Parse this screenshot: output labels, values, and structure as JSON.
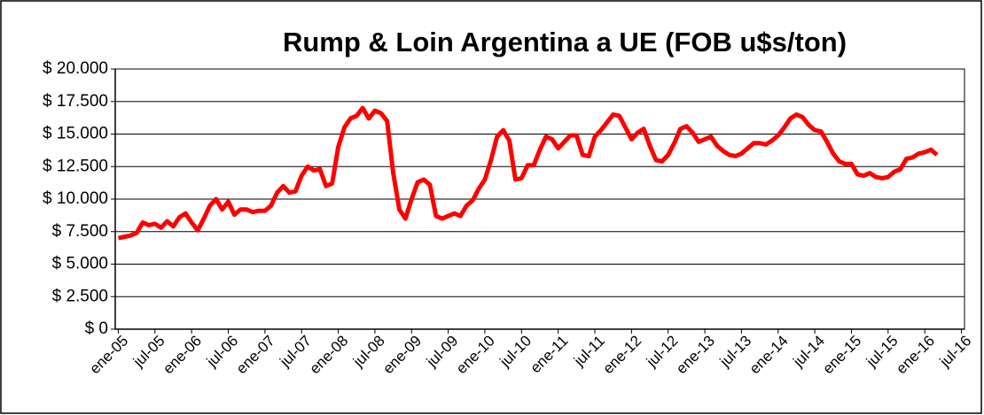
{
  "chart_data": {
    "type": "line",
    "title": "Rump & Loin Argentina a UE (FOB u$s/ton)",
    "categories": [
      "ene-05",
      null,
      null,
      null,
      null,
      null,
      "jul-05",
      null,
      null,
      null,
      null,
      null,
      "ene-06",
      null,
      null,
      null,
      null,
      null,
      "jul-06",
      null,
      null,
      null,
      null,
      null,
      "ene-07",
      null,
      null,
      null,
      null,
      null,
      "jul-07",
      null,
      null,
      null,
      null,
      null,
      "ene-08",
      null,
      null,
      null,
      null,
      null,
      "jul-08",
      null,
      null,
      null,
      null,
      null,
      "ene-09",
      null,
      null,
      null,
      null,
      null,
      "jul-09",
      null,
      null,
      null,
      null,
      null,
      "ene-10",
      null,
      null,
      null,
      null,
      null,
      "jul-10",
      null,
      null,
      null,
      null,
      null,
      "ene-11",
      null,
      null,
      null,
      null,
      null,
      "jul-11",
      null,
      null,
      null,
      null,
      null,
      "ene-12",
      null,
      null,
      null,
      null,
      null,
      "jul-12",
      null,
      null,
      null,
      null,
      null,
      "ene-13",
      null,
      null,
      null,
      null,
      null,
      "jul-13",
      null,
      null,
      null,
      null,
      null,
      "ene-14",
      null,
      null,
      null,
      null,
      null,
      "jul-14",
      null,
      null,
      null,
      null,
      null,
      "ene-15",
      null,
      null,
      null,
      null,
      null,
      "jul-15",
      null,
      null,
      null,
      null,
      null,
      "ene-16",
      null,
      null,
      null,
      null,
      null,
      "jul-16"
    ],
    "series": [
      {
        "color": "#ff0000",
        "values": [
          7000,
          7100,
          7200,
          7400,
          8200,
          8000,
          8100,
          7800,
          8300,
          7900,
          8600,
          8900,
          8200,
          7600,
          8500,
          9500,
          10000,
          9200,
          9800,
          8800,
          9200,
          9200,
          9000,
          9100,
          9100,
          9500,
          10500,
          11000,
          10500,
          10600,
          11800,
          12500,
          12200,
          12300,
          11000,
          11200,
          14000,
          15500,
          16200,
          16400,
          17000,
          16200,
          16800,
          16600,
          16000,
          12000,
          9200,
          8500,
          10000,
          11300,
          11500,
          11100,
          8700,
          8500,
          8700,
          8900,
          8700,
          9500,
          9900,
          10800,
          11500,
          13000,
          14800,
          15300,
          14500,
          11500,
          11600,
          12600,
          12600,
          13800,
          14800,
          14600,
          13900,
          14400,
          14900,
          14900,
          13400,
          13300,
          14800,
          15300,
          15900,
          16500,
          16400,
          15500,
          14600,
          15100,
          15400,
          14100,
          13000,
          12900,
          13400,
          14300,
          15400,
          15600,
          15100,
          14400,
          14600,
          14800,
          14100,
          13700,
          13400,
          13300,
          13500,
          13900,
          14300,
          14300,
          14200,
          14500,
          14900,
          15500,
          16200,
          16500,
          16300,
          15700,
          15300,
          15200,
          14400,
          13500,
          12900,
          12700,
          12700,
          11900,
          11800,
          12000,
          11700,
          11600,
          11700,
          12100,
          12300,
          13100,
          13200,
          13500,
          13600,
          13800,
          13400,
          null,
          null,
          null,
          null
        ]
      }
    ],
    "ylim": [
      0,
      20000
    ],
    "yticks": [
      {
        "value": 0,
        "label": "$ 0"
      },
      {
        "value": 2500,
        "label": "$ 2.500"
      },
      {
        "value": 5000,
        "label": "$ 5.000"
      },
      {
        "value": 7500,
        "label": "$ 7.500"
      },
      {
        "value": 10000,
        "label": "$ 10.000"
      },
      {
        "value": 12500,
        "label": "$ 12.500"
      },
      {
        "value": 15000,
        "label": "$ 15.000"
      },
      {
        "value": 17500,
        "label": "$ 17.500"
      },
      {
        "value": 20000,
        "label": "$ 20.000"
      }
    ],
    "grid": true
  }
}
